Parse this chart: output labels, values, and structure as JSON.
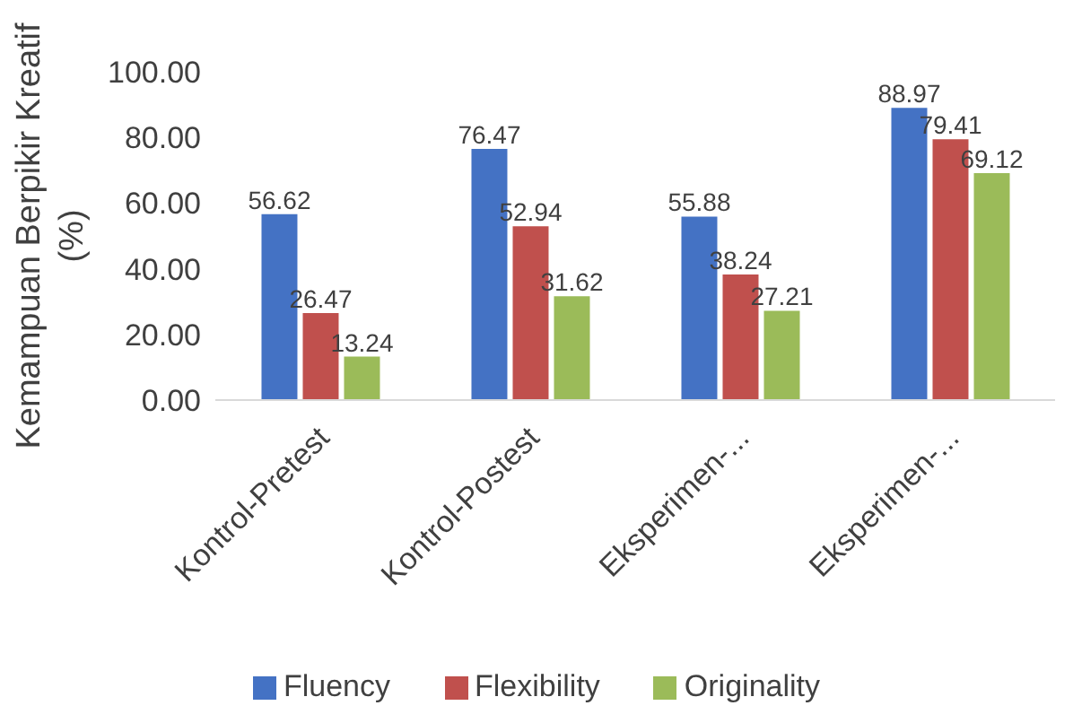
{
  "chart_data": {
    "type": "bar",
    "ylabel": "Kemampuan Berpikir Kreatif (%)",
    "categories": [
      "Kontrol-Pretest",
      "Kontrol-Postest",
      "Eksperimen-...",
      "Eksperimen-..."
    ],
    "series": [
      {
        "name": "Fluency",
        "color": "#4472c4",
        "values": [
          56.62,
          76.47,
          55.88,
          88.97
        ]
      },
      {
        "name": "Flexibility",
        "color": "#c0504d",
        "values": [
          26.47,
          52.94,
          38.24,
          79.41
        ]
      },
      {
        "name": "Originality",
        "color": "#9bbb59",
        "values": [
          13.24,
          31.62,
          27.21,
          69.12
        ]
      }
    ],
    "ylim": [
      0,
      100
    ],
    "yticks": [
      {
        "value": 0,
        "label": "0.00"
      },
      {
        "value": 20,
        "label": "20.00"
      },
      {
        "value": 40,
        "label": "40.00"
      },
      {
        "value": 60,
        "label": "60.00"
      },
      {
        "value": 80,
        "label": "80.00"
      },
      {
        "value": 100,
        "label": "100.00"
      }
    ],
    "grid": false,
    "legend": "bottom",
    "data_labels": true
  }
}
